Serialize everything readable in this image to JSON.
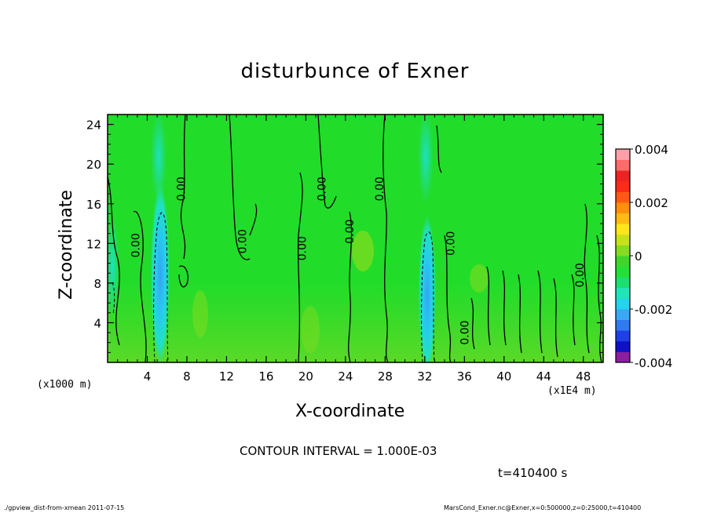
{
  "chart_data": {
    "type": "heatmap",
    "title": "disturbunce of Exner",
    "xlabel": "X-coordinate",
    "ylabel": "Z-coordinate",
    "x_unit": "(x1000 m)",
    "x_unit_secondary": "(x1E4 m)",
    "xlim": [
      0,
      50
    ],
    "ylim": [
      0,
      25
    ],
    "x_ticks": [
      "4",
      "8",
      "12",
      "16",
      "20",
      "24",
      "28",
      "32",
      "36",
      "40",
      "44",
      "48"
    ],
    "y_ticks": [
      "4",
      "8",
      "12",
      "16",
      "20",
      "24"
    ],
    "colorbar": {
      "ticks": [
        "0.004",
        "0.002",
        "0",
        "-0.002",
        "-0.004"
      ],
      "range": [
        -0.004,
        0.004
      ],
      "colors": [
        "#8a1fa0",
        "#1010c8",
        "#1f3fe8",
        "#2f7af0",
        "#3aa8f4",
        "#22d4ee",
        "#1ee6b8",
        "#19e070",
        "#22e036",
        "#3ed62a",
        "#86dc1e",
        "#c8e21a",
        "#ffe619",
        "#ffbb11",
        "#ff8f0c",
        "#ff5a14",
        "#ff2a18",
        "#ee2222",
        "#ff6b6b",
        "#ffa0a8"
      ]
    },
    "contour_labels": [
      {
        "text": "0.00",
        "x": 3.2,
        "y": 11.8
      },
      {
        "text": "0.00",
        "x": 7.8,
        "y": 17.5
      },
      {
        "text": "0.00",
        "x": 14.0,
        "y": 12.2
      },
      {
        "text": "0.00",
        "x": 20.0,
        "y": 11.5
      },
      {
        "text": "0.00",
        "x": 22.0,
        "y": 17.5
      },
      {
        "text": "0.00",
        "x": 24.8,
        "y": 13.2
      },
      {
        "text": "0.00",
        "x": 27.8,
        "y": 17.5
      },
      {
        "text": "0.00",
        "x": 35.0,
        "y": 12.0
      },
      {
        "text": "0.00",
        "x": 36.4,
        "y": 3.0
      },
      {
        "text": "0.00",
        "x": 48.0,
        "y": 8.8
      }
    ]
  },
  "labels": {
    "contour_interval": "CONTOUR INTERVAL = 1.000E-03",
    "time": "t=410400 s",
    "footer_left": "./gpview_dist-from-xmean   2011-07-15",
    "footer_right": "MarsCond_Exner.nc@Exner,x=0:500000,z=0:25000,t=410400"
  }
}
